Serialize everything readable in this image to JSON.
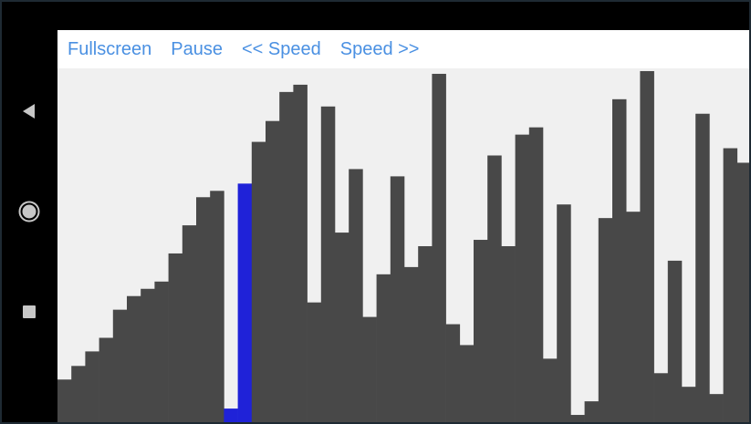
{
  "toolbar": {
    "fullscreen_label": "Fullscreen",
    "pause_label": "Pause",
    "speed_down_label": "<< Speed",
    "speed_up_label": "Speed >>"
  },
  "navbar": {
    "back_icon": "triangle-left",
    "home_icon": "circle",
    "recents_icon": "square"
  },
  "colors": {
    "bar": "#484848",
    "highlight": "#1f22d8",
    "link": "#4a90e2",
    "background": "#f0f0f0"
  },
  "chart_data": {
    "type": "bar",
    "ylim": [
      0,
      390
    ],
    "highlight_index": [
      12,
      13
    ],
    "values": [
      47,
      62,
      78,
      93,
      124,
      139,
      147,
      155,
      186,
      217,
      248,
      255,
      15,
      263,
      309,
      332,
      364,
      372,
      132,
      348,
      209,
      279,
      116,
      163,
      271,
      171,
      194,
      384,
      108,
      85,
      201,
      294,
      194,
      317,
      325,
      70,
      240,
      8,
      23,
      225,
      356,
      232,
      387,
      54,
      178,
      39,
      340,
      31,
      302,
      286
    ]
  }
}
